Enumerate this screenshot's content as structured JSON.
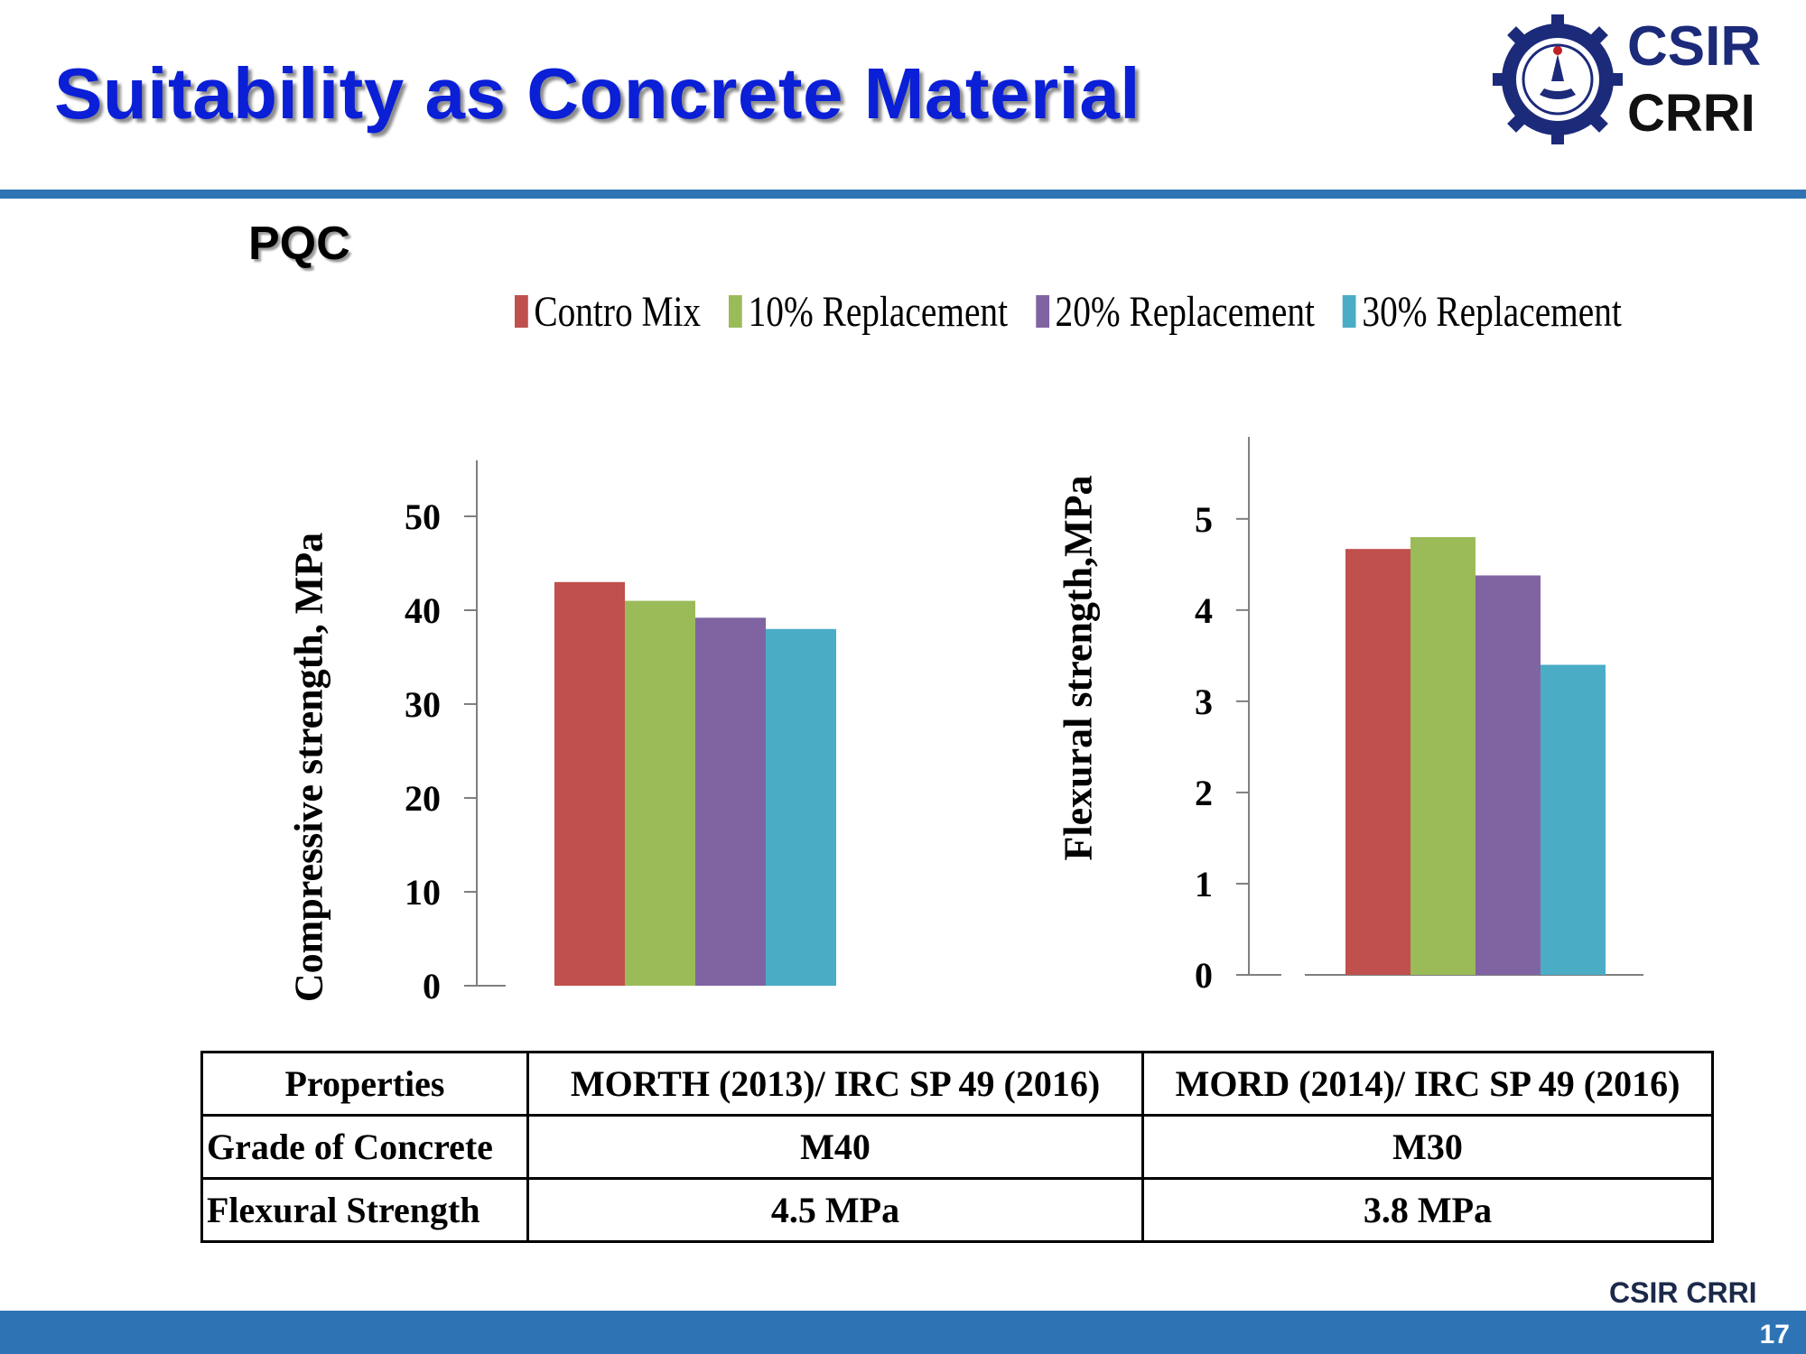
{
  "slide": {
    "title": "Suitability as Concrete Material",
    "section": "PQC",
    "page_number": "17",
    "logo": {
      "text": "CSIR",
      "subtext": "CRRI",
      "icon": "csir-gear-emblem-icon"
    },
    "footer_logo": "CSIR CRRI",
    "colors": {
      "title": "#0a1fd6",
      "rule": "#2e74b5",
      "logo_blue": "#1c2a7a",
      "series": [
        "#c0504d",
        "#9bbb59",
        "#8064a2",
        "#4bacc6"
      ]
    }
  },
  "legend": {
    "items": [
      "Contro Mix",
      "10% Replacement",
      "20% Replacement",
      "30% Replacement"
    ]
  },
  "chart_data": [
    {
      "type": "bar",
      "categories": [
        ""
      ],
      "series": [
        {
          "name": "Contro Mix",
          "values": [
            43
          ]
        },
        {
          "name": "10% Replacement",
          "values": [
            41
          ]
        },
        {
          "name": "20% Replacement",
          "values": [
            39.2
          ]
        },
        {
          "name": "30% Replacement",
          "values": [
            38
          ]
        }
      ],
      "ylabel": "Compressive strength, MPa",
      "yticks": [
        "0",
        "10",
        "20",
        "30",
        "40",
        "50"
      ],
      "ylim": [
        0,
        55
      ],
      "grid": false
    },
    {
      "type": "bar",
      "categories": [
        ""
      ],
      "series": [
        {
          "name": "Contro Mix",
          "values": [
            4.67
          ]
        },
        {
          "name": "10% Replacement",
          "values": [
            4.8
          ]
        },
        {
          "name": "20% Replacement",
          "values": [
            4.38
          ]
        },
        {
          "name": "30% Replacement",
          "values": [
            3.4
          ]
        }
      ],
      "ylabel": "Flexural  strength,MPa",
      "yticks": [
        "0",
        "1",
        "2",
        "3",
        "4",
        "5"
      ],
      "ylim": [
        0,
        5.8
      ],
      "grid": false
    }
  ],
  "table": {
    "header": [
      "Properties",
      "MORTH (2013)/ IRC SP 49 (2016)",
      "MORD (2014)/ IRC SP 49 (2016)"
    ],
    "rows": [
      [
        "Grade of Concrete",
        "M40",
        "M30"
      ],
      [
        "Flexural  Strength",
        "4.5  MPa",
        "3.8 MPa"
      ]
    ]
  }
}
